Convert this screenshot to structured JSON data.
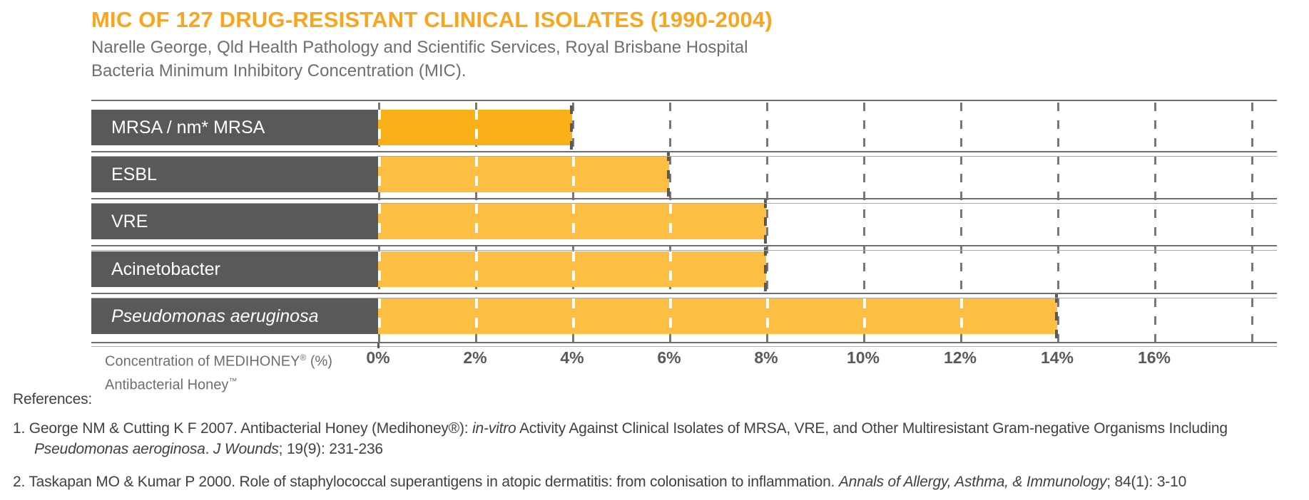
{
  "header": {
    "title": "MIC OF 127 DRUG-RESISTANT CLINICAL ISOLATES (1990-2004)",
    "subtitle_line1": "Narelle George, Qld Health Pathology and Scientific Services, Royal Brisbane Hospital",
    "subtitle_line2": "Bacteria Minimum Inhibitory Concentration (MIC)."
  },
  "chart_data": {
    "type": "bar",
    "orientation": "horizontal",
    "title": "MIC OF 127 DRUG-RESISTANT CLINICAL ISOLATES (1990-2004)",
    "xlabel": "Concentration of MEDIHONEY® (%) Antibacterial Honey™",
    "categories": [
      "MRSA / nm* MRSA",
      "ESBL",
      "VRE",
      "Acinetobacter",
      "Pseudomonas aeruginosa"
    ],
    "categories_italic": [
      false,
      false,
      false,
      false,
      true
    ],
    "values": [
      4,
      6,
      8,
      8,
      14
    ],
    "unit": "% MEDIHONEY concentration (MIC)",
    "xlim": [
      0,
      18
    ],
    "tick_labels": [
      "0%",
      "2%",
      "4%",
      "6%",
      "8%",
      "10%",
      "12%",
      "14%",
      "16%"
    ],
    "tick_values": [
      0,
      2,
      4,
      6,
      8,
      10,
      12,
      14,
      16
    ],
    "gridline_pcts": [
      0,
      2,
      4,
      6,
      8,
      10,
      12,
      14,
      16,
      18
    ],
    "grid_style": "dashed-vertical",
    "legend": "none",
    "bar_colors": [
      "#F9B019",
      "#FCBE43",
      "#FCBE43",
      "#FCBE43",
      "#FCBE43"
    ],
    "label_box_color": "#58595B"
  },
  "axis": {
    "title_line1_text": "Concentration of MEDIHONEY",
    "title_line1_sup": "®",
    "title_line1_suffix": " (%)",
    "title_line2_text": "Antibacterial Honey",
    "title_line2_sup": "™"
  },
  "references": {
    "heading": "References:",
    "ref1_seg1": "1. George NM & Cutting K F 2007. Antibacterial Honey (Medihoney®): ",
    "ref1_seg2_italic": "in-vitro",
    "ref1_seg3": " Activity Against Clinical Isolates of MRSA, VRE, and Other Multiresistant Gram-negative Organisms Including",
    "ref1_line2_seg1_italic": "Pseudomonas aeroginosa",
    "ref1_line2_seg2": ". ",
    "ref1_line2_seg3_italic": "J Wounds",
    "ref1_line2_seg4": "; 19(9): 231-236",
    "ref2_seg1": "2. Taskapan MO & Kumar P 2000. Role of staphylococcal superantigens in atopic dermatitis: from colonisation to inflammation. ",
    "ref2_seg2_italic": "Annals of Allergy, Asthma, & Immunology",
    "ref2_seg3": "; 84(1): 3-10"
  },
  "colors": {
    "title_accent": "#F9A51D",
    "bar_primary": "#F9B019",
    "bar_secondary": "#FCBE43",
    "label_box": "#58595B",
    "text_gray": "#6d6e71",
    "reference_text": "#414042",
    "grid_dark_dash": "#77787b",
    "grid_white_dash": "#ffffff"
  }
}
